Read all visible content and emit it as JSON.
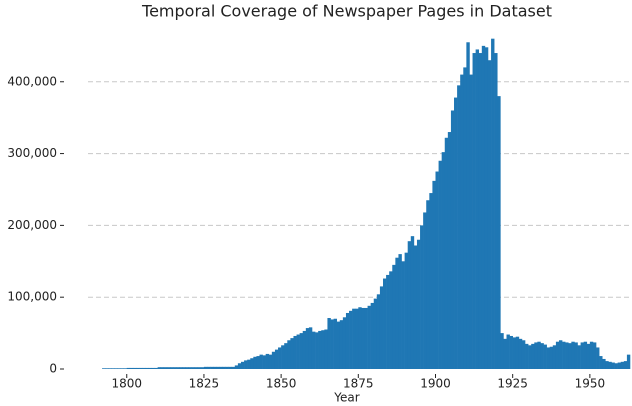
{
  "chart_data": {
    "type": "histogram",
    "title": "Temporal Coverage of Newspaper Pages in Dataset",
    "x_label": "Year",
    "color": "#1f77b4",
    "grid": true,
    "bins": [
      1792,
      1793,
      1794,
      1795,
      1796,
      1797,
      1798,
      1799,
      1800,
      1801,
      1802,
      1803,
      1804,
      1805,
      1806,
      1807,
      1808,
      1809,
      1810,
      1811,
      1812,
      1813,
      1814,
      1815,
      1816,
      1817,
      1818,
      1819,
      1820,
      1821,
      1822,
      1823,
      1824,
      1825,
      1826,
      1827,
      1828,
      1829,
      1830,
      1831,
      1832,
      1833,
      1834,
      1835,
      1836,
      1837,
      1838,
      1839,
      1840,
      1841,
      1842,
      1843,
      1844,
      1845,
      1846,
      1847,
      1848,
      1849,
      1850,
      1851,
      1852,
      1853,
      1854,
      1855,
      1856,
      1857,
      1858,
      1859,
      1860,
      1861,
      1862,
      1863,
      1864,
      1865,
      1866,
      1867,
      1868,
      1869,
      1870,
      1871,
      1872,
      1873,
      1874,
      1875,
      1876,
      1877,
      1878,
      1879,
      1880,
      1881,
      1882,
      1883,
      1884,
      1885,
      1886,
      1887,
      1888,
      1889,
      1890,
      1891,
      1892,
      1893,
      1894,
      1895,
      1896,
      1897,
      1898,
      1899,
      1900,
      1901,
      1902,
      1903,
      1904,
      1905,
      1906,
      1907,
      1908,
      1909,
      1910,
      1911,
      1912,
      1913,
      1914,
      1915,
      1916,
      1917,
      1918,
      1919,
      1920,
      1921,
      1922,
      1923,
      1924,
      1925,
      1926,
      1927,
      1928,
      1929,
      1930,
      1931,
      1932,
      1933,
      1934,
      1935,
      1936,
      1937,
      1938,
      1939,
      1940,
      1941,
      1942,
      1943,
      1944,
      1945,
      1946,
      1947,
      1948,
      1949,
      1950,
      1951,
      1952,
      1953,
      1954,
      1955,
      1956,
      1957,
      1958,
      1959,
      1960,
      1961,
      1962,
      1963
    ],
    "values": [
      1000,
      1000,
      1000,
      1000,
      1000,
      1000,
      1000,
      1000,
      1500,
      1500,
      1500,
      1500,
      1500,
      1500,
      1500,
      1500,
      1500,
      1500,
      2500,
      2500,
      2500,
      2500,
      2500,
      2500,
      2500,
      2500,
      2500,
      2500,
      2500,
      2500,
      2500,
      2500,
      2500,
      3000,
      3000,
      3000,
      3000,
      3000,
      3000,
      3000,
      3000,
      3000,
      3000,
      5000,
      8000,
      10000,
      12000,
      13000,
      15000,
      17000,
      18000,
      20000,
      19000,
      21000,
      20000,
      24000,
      27000,
      30000,
      33000,
      36000,
      40000,
      43000,
      46000,
      48000,
      50000,
      53000,
      57000,
      58000,
      52000,
      51000,
      53000,
      54000,
      55000,
      71000,
      69000,
      70000,
      66000,
      68000,
      72000,
      78000,
      81000,
      84000,
      84000,
      86000,
      85000,
      85000,
      88000,
      92000,
      98000,
      104000,
      115000,
      126000,
      131000,
      136000,
      145000,
      155000,
      160000,
      150000,
      162000,
      178000,
      185000,
      172000,
      180000,
      200000,
      218000,
      235000,
      245000,
      262000,
      275000,
      290000,
      302000,
      322000,
      330000,
      360000,
      378000,
      395000,
      410000,
      420000,
      455000,
      410000,
      440000,
      445000,
      440000,
      450000,
      448000,
      430000,
      460000,
      440000,
      380000,
      50000,
      42000,
      48000,
      46000,
      44000,
      45000,
      42000,
      40000,
      35000,
      33000,
      35000,
      37000,
      38000,
      36000,
      34000,
      30000,
      31000,
      33000,
      38000,
      40000,
      38000,
      37000,
      36000,
      38000,
      37000,
      33000,
      37000,
      38000,
      35000,
      38000,
      37000,
      30000,
      18000,
      14000,
      11000,
      10000,
      9000,
      8000,
      9000,
      10000,
      11000,
      20000
    ],
    "xlim": [
      1780,
      1963
    ],
    "xticks": [
      1800,
      1825,
      1850,
      1875,
      1900,
      1925,
      1950
    ],
    "ylim": [
      0,
      470000
    ],
    "yticks": [
      0,
      {
        "value": 100000,
        "label": "100,000"
      },
      {
        "value": 200000,
        "label": "200,000"
      },
      {
        "value": 300000,
        "label": "300,000"
      },
      {
        "value": 400000,
        "label": "400,000"
      }
    ]
  }
}
